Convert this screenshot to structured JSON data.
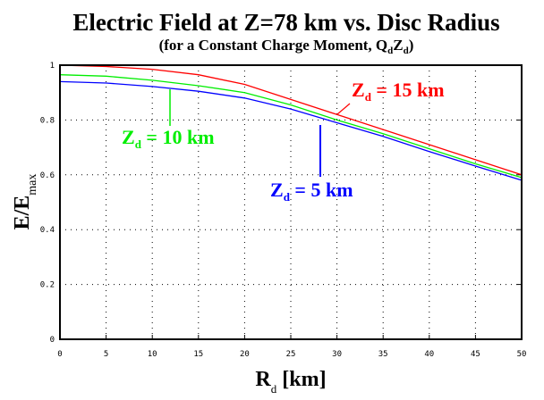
{
  "chart_data": {
    "type": "line",
    "title": "Electric Field at Z=78 km  vs.  Disc Radius",
    "subtitle": "(for a Constant Charge Moment, Q",
    "subtitle_sub1": "d",
    "subtitle_mid": "Z",
    "subtitle_sub2": "d",
    "subtitle_end": ")",
    "xlabel": "R",
    "xlabel_sub": "d",
    "xlabel_unit": " [km]",
    "ylabel": "E/E",
    "ylabel_sub": "max",
    "xlim": [
      0,
      50
    ],
    "ylim": [
      0,
      1
    ],
    "grid": true,
    "x_ticks": [
      "0",
      "5",
      "10",
      "15",
      "20",
      "25",
      "30",
      "35",
      "40",
      "45",
      "50"
    ],
    "y_ticks": [
      "0",
      "0.2",
      "0.4",
      "0.6",
      "0.8",
      "1"
    ],
    "x": [
      0,
      5,
      10,
      15,
      20,
      25,
      30,
      35,
      40,
      45,
      50
    ],
    "series": [
      {
        "name": "Z",
        "name_sub": "d",
        "name_rest": " = 15 km",
        "color": "#ff0000",
        "values": [
          1.0,
          0.995,
          0.985,
          0.965,
          0.93,
          0.875,
          0.82,
          0.765,
          0.71,
          0.655,
          0.6
        ]
      },
      {
        "name": "Z",
        "name_sub": "d",
        "name_rest": " = 10 km",
        "color": "#00ee00",
        "values": [
          0.965,
          0.96,
          0.945,
          0.925,
          0.9,
          0.855,
          0.8,
          0.75,
          0.695,
          0.64,
          0.59
        ]
      },
      {
        "name": "Z",
        "name_sub": "d",
        "name_rest": " = 5 km",
        "color": "#0000ff",
        "values": [
          0.94,
          0.935,
          0.922,
          0.905,
          0.88,
          0.84,
          0.79,
          0.74,
          0.685,
          0.632,
          0.58
        ]
      }
    ]
  }
}
